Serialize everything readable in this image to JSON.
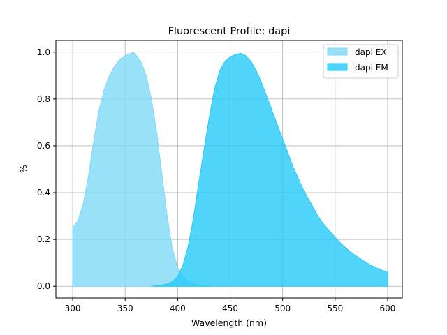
{
  "chart_data": {
    "type": "area",
    "title": "Fluorescent Profile: dapi",
    "xlabel": "Wavelength (nm)",
    "ylabel": "%",
    "xlim": [
      284,
      614
    ],
    "ylim": [
      -0.05,
      1.05
    ],
    "xticks": [
      300,
      350,
      400,
      450,
      500,
      550,
      600
    ],
    "yticks": [
      0.0,
      0.2,
      0.4,
      0.6,
      0.8,
      1.0
    ],
    "xtick_labels": [
      "300",
      "350",
      "400",
      "450",
      "500",
      "550",
      "600"
    ],
    "ytick_labels": [
      "0.0",
      "0.2",
      "0.4",
      "0.6",
      "0.8",
      "1.0"
    ],
    "grid": true,
    "legend_position": "top-right",
    "series": [
      {
        "name": "dapi EX",
        "color": "#7fd9f8",
        "fill_opacity": 0.8,
        "x": [
          300,
          305,
          310,
          315,
          320,
          325,
          330,
          335,
          340,
          345,
          350,
          355,
          358,
          360,
          365,
          370,
          375,
          380,
          385,
          390,
          395,
          400,
          405,
          410,
          415,
          420,
          425,
          430,
          433
        ],
        "y": [
          0.25,
          0.28,
          0.35,
          0.47,
          0.62,
          0.75,
          0.84,
          0.9,
          0.94,
          0.97,
          0.985,
          0.995,
          1.0,
          0.99,
          0.96,
          0.9,
          0.8,
          0.66,
          0.48,
          0.3,
          0.16,
          0.08,
          0.04,
          0.02,
          0.01,
          0.005,
          0.002,
          0.001,
          0.0
        ]
      },
      {
        "name": "dapi EM",
        "color": "#26c9f9",
        "fill_opacity": 0.8,
        "x": [
          375,
          380,
          385,
          390,
          395,
          400,
          405,
          410,
          415,
          420,
          425,
          430,
          435,
          440,
          445,
          450,
          455,
          460,
          465,
          470,
          475,
          480,
          485,
          490,
          495,
          500,
          505,
          510,
          515,
          520,
          525,
          530,
          535,
          540,
          545,
          550,
          555,
          560,
          565,
          570,
          575,
          580,
          585,
          590,
          595,
          600
        ],
        "y": [
          0.0,
          0.002,
          0.005,
          0.01,
          0.02,
          0.04,
          0.09,
          0.17,
          0.29,
          0.44,
          0.58,
          0.72,
          0.84,
          0.92,
          0.96,
          0.98,
          0.99,
          0.995,
          0.985,
          0.96,
          0.92,
          0.87,
          0.81,
          0.75,
          0.69,
          0.63,
          0.57,
          0.51,
          0.46,
          0.41,
          0.37,
          0.33,
          0.29,
          0.26,
          0.235,
          0.21,
          0.185,
          0.165,
          0.145,
          0.13,
          0.115,
          0.1,
          0.088,
          0.077,
          0.068,
          0.06
        ]
      }
    ]
  }
}
